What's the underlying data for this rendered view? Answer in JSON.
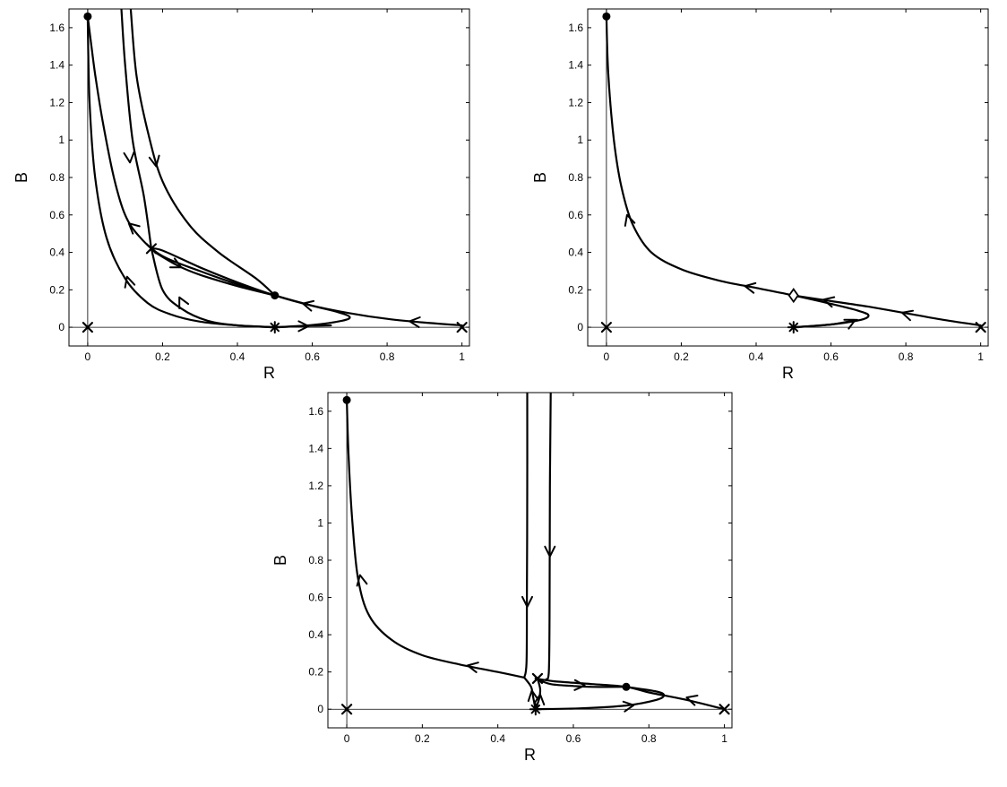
{
  "chart_data": [
    {
      "type": "line",
      "panel": "top-left",
      "title": "",
      "xlabel": "R",
      "ylabel": "B",
      "xlim": [
        -0.05,
        1.02
      ],
      "ylim": [
        -0.1,
        1.7
      ],
      "xticks": [
        0,
        0.2,
        0.4,
        0.6,
        0.8,
        1
      ],
      "xtick_labels": [
        "0",
        "0.2",
        "0.4",
        "0.6",
        "0.8",
        "1"
      ],
      "yticks": [
        0,
        0.2,
        0.4,
        0.6,
        0.8,
        1,
        1.2,
        1.4,
        1.6
      ],
      "ytick_labels": [
        "0",
        "0.2",
        "0.4",
        "0.6",
        "0.8",
        "1",
        "1.2",
        "1.4",
        "1.6"
      ],
      "grid": false,
      "curves": [
        {
          "points": [
            [
              0.5,
              0
            ],
            [
              0.6,
              0.012
            ],
            [
              0.68,
              0.035
            ],
            [
              0.7,
              0.055
            ],
            [
              0.67,
              0.08
            ],
            [
              0.6,
              0.115
            ],
            [
              0.5,
              0.17
            ],
            [
              0.4,
              0.23
            ],
            [
              0.3,
              0.3
            ],
            [
              0.2,
              0.38
            ],
            [
              0.14,
              0.48
            ],
            [
              0.1,
              0.6
            ],
            [
              0.07,
              0.8
            ],
            [
              0.04,
              1.1
            ],
            [
              0.02,
              1.35
            ],
            [
              0.01,
              1.5
            ],
            [
              0,
              1.66
            ]
          ],
          "arrows": [
            {
              "at": [
                0.11,
                0.555
              ],
              "dir": [
                -1,
                0.9
              ]
            }
          ]
        },
        {
          "points": [
            [
              1,
              0.01
            ],
            [
              0.9,
              0.025
            ],
            [
              0.8,
              0.045
            ],
            [
              0.7,
              0.075
            ],
            [
              0.6,
              0.115
            ],
            [
              0.5,
              0.17
            ],
            [
              0.4,
              0.24
            ],
            [
              0.3,
              0.32
            ],
            [
              0.2,
              0.41
            ],
            [
              0.17,
              0.42
            ]
          ],
          "arrows": [
            {
              "at": [
                0.86,
                0.032
              ],
              "dir": [
                -1,
                0.1
              ]
            },
            {
              "at": [
                0.575,
                0.127
              ],
              "dir": [
                -1,
                0.25
              ]
            }
          ]
        },
        {
          "points": [
            [
              0.18,
              0.4
            ],
            [
              0.24,
              0.33
            ],
            [
              0.3,
              0.28
            ],
            [
              0.4,
              0.22
            ],
            [
              0.5,
              0.17
            ]
          ],
          "arrows": [
            {
              "at": [
                0.25,
                0.32
              ],
              "dir": [
                1,
                -0.5
              ]
            }
          ]
        },
        {
          "points": [
            [
              0.17,
              0.42
            ],
            [
              0.15,
              0.7
            ],
            [
              0.12,
              1.0
            ],
            [
              0.1,
              1.4
            ],
            [
              0.09,
              1.7
            ]
          ],
          "arrows": [
            {
              "at": [
                0.113,
                0.88
              ],
              "dir": [
                0.1,
                -1
              ]
            }
          ]
        },
        {
          "points": [
            [
              0.115,
              1.7
            ],
            [
              0.13,
              1.35
            ],
            [
              0.16,
              1.05
            ],
            [
              0.2,
              0.78
            ],
            [
              0.27,
              0.55
            ],
            [
              0.35,
              0.4
            ],
            [
              0.45,
              0.26
            ],
            [
              0.5,
              0.17
            ]
          ],
          "arrows": [
            {
              "at": [
                0.183,
                0.86
              ],
              "dir": [
                0.2,
                -1
              ]
            }
          ]
        },
        {
          "points": [
            [
              0.5,
              0
            ],
            [
              0.4,
              0.01
            ],
            [
              0.3,
              0.03
            ],
            [
              0.22,
              0.07
            ],
            [
              0.16,
              0.13
            ],
            [
              0.1,
              0.26
            ],
            [
              0.05,
              0.48
            ],
            [
              0.02,
              0.8
            ],
            [
              0.005,
              1.2
            ],
            [
              0,
              1.66
            ]
          ],
          "arrows": [
            {
              "at": [
                0.105,
                0.27
              ],
              "dir": [
                -0.3,
                1
              ]
            }
          ]
        },
        {
          "points": [
            [
              0.5,
              0
            ],
            [
              0.4,
              0.01
            ],
            [
              0.32,
              0.035
            ],
            [
              0.25,
              0.1
            ],
            [
              0.2,
              0.2
            ],
            [
              0.17,
              0.42
            ]
          ],
          "arrows": [
            {
              "at": [
                0.245,
                0.16
              ],
              "dir": [
                -0.5,
                1
              ]
            }
          ]
        },
        {
          "points": [
            [
              0.5,
              0
            ],
            [
              0.6,
              0.008
            ],
            [
              0.65,
              0.01
            ]
          ],
          "arrows": [
            {
              "at": [
                0.59,
                0.006
              ],
              "dir": [
                1,
                0
              ]
            }
          ]
        }
      ],
      "markers": [
        {
          "kind": "dot",
          "at": [
            0,
            1.66
          ]
        },
        {
          "kind": "dot",
          "at": [
            0.5,
            0.17
          ]
        },
        {
          "kind": "x",
          "at": [
            0.17,
            0.42
          ]
        },
        {
          "kind": "x",
          "at": [
            0,
            0
          ]
        },
        {
          "kind": "x",
          "at": [
            1,
            0
          ]
        },
        {
          "kind": "star",
          "at": [
            0.5,
            0
          ]
        }
      ]
    },
    {
      "type": "line",
      "panel": "top-right",
      "title": "",
      "xlabel": "R",
      "ylabel": "B",
      "xlim": [
        -0.05,
        1.02
      ],
      "ylim": [
        -0.1,
        1.7
      ],
      "xticks": [
        0,
        0.2,
        0.4,
        0.6,
        0.8,
        1
      ],
      "xtick_labels": [
        "0",
        "0.2",
        "0.4",
        "0.6",
        "0.8",
        "1"
      ],
      "yticks": [
        0,
        0.2,
        0.4,
        0.6,
        0.8,
        1,
        1.2,
        1.4,
        1.6
      ],
      "ytick_labels": [
        "0",
        "0.2",
        "0.4",
        "0.6",
        "0.8",
        "1",
        "1.2",
        "1.4",
        "1.6"
      ],
      "grid": false,
      "curves": [
        {
          "points": [
            [
              0.5,
              0
            ],
            [
              0.6,
              0.015
            ],
            [
              0.68,
              0.04
            ],
            [
              0.7,
              0.065
            ],
            [
              0.67,
              0.09
            ],
            [
              0.6,
              0.125
            ],
            [
              0.5,
              0.17
            ],
            [
              0.4,
              0.21
            ],
            [
              0.3,
              0.25
            ],
            [
              0.2,
              0.31
            ],
            [
              0.12,
              0.4
            ],
            [
              0.07,
              0.55
            ],
            [
              0.04,
              0.75
            ],
            [
              0.02,
              1.0
            ],
            [
              0.005,
              1.35
            ],
            [
              0,
              1.66
            ]
          ],
          "arrows": [
            {
              "at": [
                0.055,
                0.6
              ],
              "dir": [
                -0.3,
                1
              ]
            },
            {
              "at": [
                0.37,
                0.22
              ],
              "dir": [
                -1,
                0.2
              ]
            }
          ]
        },
        {
          "points": [
            [
              1,
              0.01
            ],
            [
              0.9,
              0.04
            ],
            [
              0.8,
              0.075
            ],
            [
              0.7,
              0.11
            ],
            [
              0.6,
              0.14
            ],
            [
              0.5,
              0.17
            ]
          ],
          "arrows": [
            {
              "at": [
                0.79,
                0.078
              ],
              "dir": [
                -1,
                0.3
              ]
            },
            {
              "at": [
                0.58,
                0.148
              ],
              "dir": [
                -1,
                0.25
              ]
            }
          ]
        },
        {
          "points": [
            [
              0.5,
              0
            ],
            [
              0.6,
              0.015
            ],
            [
              0.67,
              0.04
            ]
          ],
          "arrows": [
            {
              "at": [
                0.665,
                0.04
              ],
              "dir": [
                1,
                0.5
              ]
            }
          ]
        }
      ],
      "markers": [
        {
          "kind": "dot",
          "at": [
            0,
            1.66
          ]
        },
        {
          "kind": "diamond",
          "at": [
            0.5,
            0.17
          ]
        },
        {
          "kind": "x",
          "at": [
            0,
            0
          ]
        },
        {
          "kind": "x",
          "at": [
            1,
            0
          ]
        },
        {
          "kind": "star",
          "at": [
            0.5,
            0
          ]
        }
      ]
    },
    {
      "type": "line",
      "panel": "bottom",
      "title": "",
      "xlabel": "R",
      "ylabel": "B",
      "xlim": [
        -0.05,
        1.02
      ],
      "ylim": [
        -0.1,
        1.7
      ],
      "xticks": [
        0,
        0.2,
        0.4,
        0.6,
        0.8,
        1
      ],
      "xtick_labels": [
        "0",
        "0.2",
        "0.4",
        "0.6",
        "0.8",
        "1"
      ],
      "yticks": [
        0,
        0.2,
        0.4,
        0.6,
        0.8,
        1,
        1.2,
        1.4,
        1.6
      ],
      "ytick_labels": [
        "0",
        "0.2",
        "0.4",
        "0.6",
        "0.8",
        "1",
        "1.2",
        "1.4",
        "1.6"
      ],
      "grid": false,
      "curves": [
        {
          "points": [
            [
              0.47,
              0.17
            ],
            [
              0.4,
              0.2
            ],
            [
              0.3,
              0.24
            ],
            [
              0.2,
              0.29
            ],
            [
              0.12,
              0.37
            ],
            [
              0.06,
              0.5
            ],
            [
              0.03,
              0.7
            ],
            [
              0.015,
              1.0
            ],
            [
              0.005,
              1.35
            ],
            [
              0,
              1.66
            ]
          ],
          "arrows": [
            {
              "at": [
                0.035,
                0.72
              ],
              "dir": [
                -0.2,
                1
              ]
            },
            {
              "at": [
                0.32,
                0.235
              ],
              "dir": [
                -1,
                0.2
              ]
            }
          ]
        },
        {
          "points": [
            [
              0.478,
              1.7
            ],
            [
              0.478,
              1.2
            ],
            [
              0.477,
              0.6
            ],
            [
              0.476,
              0.25
            ],
            [
              0.47,
              0.17
            ]
          ],
          "arrows": [
            {
              "at": [
                0.478,
                0.55
              ],
              "dir": [
                0,
                -1
              ]
            }
          ]
        },
        {
          "points": [
            [
              0.54,
              1.7
            ],
            [
              0.538,
              1.2
            ],
            [
              0.537,
              0.5
            ],
            [
              0.535,
              0.2
            ],
            [
              0.528,
              0.16
            ]
          ],
          "arrows": [
            {
              "at": [
                0.538,
                0.82
              ],
              "dir": [
                0,
                -1
              ]
            }
          ]
        },
        {
          "points": [
            [
              1,
              0
            ],
            [
              0.9,
              0.05
            ],
            [
              0.8,
              0.09
            ],
            [
              0.74,
              0.12
            ],
            [
              0.65,
              0.135
            ],
            [
              0.55,
              0.15
            ],
            [
              0.5,
              0.165
            ]
          ],
          "arrows": [
            {
              "at": [
                0.9,
                0.063
              ],
              "dir": [
                -1,
                0.3
              ]
            }
          ]
        },
        {
          "points": [
            [
              0.5,
              0
            ],
            [
              0.62,
              0.005
            ],
            [
              0.74,
              0.02
            ],
            [
              0.82,
              0.05
            ],
            [
              0.84,
              0.075
            ],
            [
              0.82,
              0.095
            ],
            [
              0.74,
              0.12
            ]
          ],
          "arrows": [
            {
              "at": [
                0.76,
                0.022
              ],
              "dir": [
                1,
                0.15
              ]
            }
          ]
        },
        {
          "points": [
            [
              0.5,
              0.165
            ],
            [
              0.54,
              0.135
            ],
            [
              0.6,
              0.125
            ],
            [
              0.65,
              0.12
            ],
            [
              0.74,
              0.12
            ]
          ],
          "arrows": [
            {
              "at": [
                0.63,
                0.127
              ],
              "dir": [
                1,
                -0.05
              ]
            }
          ]
        },
        {
          "points": [
            [
              0.5,
              0
            ],
            [
              0.51,
              0.06
            ],
            [
              0.512,
              0.11
            ],
            [
              0.505,
              0.165
            ]
          ],
          "arrows": [
            {
              "at": [
                0.512,
                0.08
              ],
              "dir": [
                0.1,
                1
              ]
            }
          ]
        },
        {
          "points": [
            [
              0.5,
              0
            ],
            [
              0.494,
              0.06
            ],
            [
              0.488,
              0.12
            ],
            [
              0.47,
              0.17
            ]
          ],
          "arrows": [
            {
              "at": [
                0.49,
                0.1
              ],
              "dir": [
                -0.15,
                1
              ]
            }
          ]
        }
      ],
      "markers": [
        {
          "kind": "dot",
          "at": [
            0,
            1.66
          ]
        },
        {
          "kind": "dot",
          "at": [
            0.74,
            0.12
          ]
        },
        {
          "kind": "x",
          "at": [
            0.505,
            0.165
          ]
        },
        {
          "kind": "x",
          "at": [
            0,
            0
          ]
        },
        {
          "kind": "x",
          "at": [
            1,
            0
          ]
        },
        {
          "kind": "star",
          "at": [
            0.5,
            0
          ]
        }
      ]
    }
  ]
}
